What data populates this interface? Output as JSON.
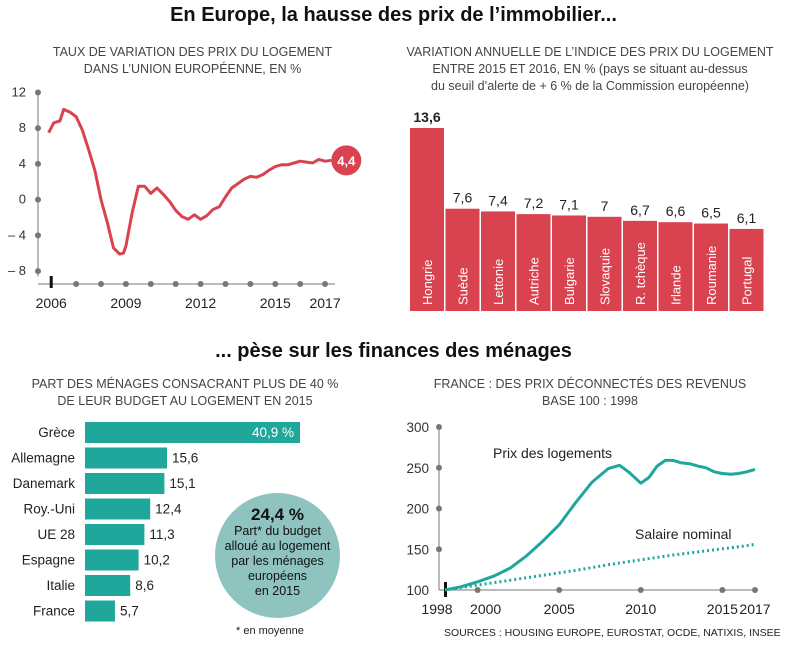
{
  "title_top": "En Europe, la hausse des prix de l’immobilier...",
  "title_bottom": "... pèse sur les finances des ménages",
  "sources": "SOURCES : HOUSING EUROPE, EUROSTAT, OCDE, NATIXIS, INSEE",
  "colors": {
    "red": "#d9434f",
    "teal": "#1ea79a",
    "circle": "#8fc3bf",
    "axis": "#777"
  },
  "chart_data": [
    {
      "id": "eu-house-prices",
      "type": "line",
      "title": "TAUX DE VARIATION DES PRIX DU LOGEMENT",
      "subtitle": "DANS L’UNION EUROPÉENNE, EN %",
      "x_ticks": [
        "2006",
        "2009",
        "2012",
        "2015",
        "2017"
      ],
      "y_ticks": [
        "12",
        "8",
        "4",
        "0",
        "– 4",
        "– 8"
      ],
      "y_tick_values": [
        12,
        8,
        4,
        0,
        -4,
        -8
      ],
      "ylim": [
        -9,
        12.5
      ],
      "xlim": [
        2005.75,
        2017.6
      ],
      "series": [
        {
          "x": [
            2005.9,
            2006.1,
            2006.35,
            2006.5,
            2006.75,
            2007.0,
            2007.25,
            2007.5,
            2007.75,
            2008.0,
            2008.25,
            2008.5,
            2008.75,
            2008.9,
            2009.0,
            2009.25,
            2009.5,
            2009.75,
            2010.0,
            2010.25,
            2010.5,
            2010.75,
            2011.0,
            2011.25,
            2011.5,
            2011.75,
            2012.0,
            2012.25,
            2012.5,
            2012.75,
            2013.0,
            2013.25,
            2013.5,
            2013.75,
            2014.0,
            2014.25,
            2014.5,
            2014.75,
            2015.0,
            2015.25,
            2015.5,
            2015.75,
            2016.0,
            2016.25,
            2016.5,
            2016.75,
            2017.0,
            2017.25
          ],
          "y": [
            7.5,
            8.6,
            8.8,
            10.1,
            9.8,
            9.3,
            7.8,
            5.6,
            3.3,
            0,
            -2.5,
            -5.4,
            -6.1,
            -6.0,
            -5.2,
            -1.5,
            1.5,
            1.5,
            0.7,
            1.3,
            0.6,
            -0.2,
            -1.2,
            -1.9,
            -2.2,
            -1.7,
            -2.2,
            -1.8,
            -1.1,
            -0.8,
            0.3,
            1.3,
            1.8,
            2.3,
            2.6,
            2.5,
            2.8,
            3.3,
            3.7,
            3.9,
            3.9,
            4.1,
            4.3,
            4.2,
            4.1,
            4.5,
            4.3,
            4.4
          ]
        }
      ],
      "last_label": "4,4"
    },
    {
      "id": "annual-index-variation",
      "type": "bar",
      "title": "VARIATION ANNUELLE DE L’INDICE DES PRIX DU LOGEMENT",
      "subtitle": "ENTRE 2015 ET 2016, EN % (pays se situant au-dessus",
      "subtitle2": "du seuil d’alerte de + 6 % de la Commission européenne)",
      "categories": [
        "Hongrie",
        "Suède",
        "Lettonie",
        "Autriche",
        "Bulgarie",
        "Slovaquie",
        "R. tchèque",
        "Irlande",
        "Roumanie",
        "Portugal"
      ],
      "values": [
        13.6,
        7.6,
        7.4,
        7.2,
        7.1,
        7,
        6.7,
        6.6,
        6.5,
        6.1
      ],
      "labels": [
        "13,6",
        "7,6",
        "7,4",
        "7,2",
        "7,1",
        "7",
        "6,7",
        "6,6",
        "6,5",
        "6,1"
      ],
      "ylim": [
        0,
        13.6
      ]
    },
    {
      "id": "households-burden",
      "type": "bar",
      "orientation": "horizontal",
      "title": "PART DES MÉNAGES CONSACRANT PLUS DE 40 %",
      "subtitle": "DE LEUR BUDGET AU LOGEMENT EN 2015",
      "categories": [
        "Grèce",
        "Allemagne",
        "Danemark",
        "Roy.-Uni",
        "UE 28",
        "Espagne",
        "Italie",
        "France"
      ],
      "values": [
        40.9,
        15.6,
        15.1,
        12.4,
        11.3,
        10.2,
        8.6,
        5.7
      ],
      "labels": [
        "40,9 %",
        "15,6",
        "15,1",
        "12,4",
        "11,3",
        "10,2",
        "8,6",
        "5,7"
      ],
      "xlim": [
        0,
        40.9
      ]
    },
    {
      "id": "france-prices-vs-income",
      "type": "line",
      "title": "FRANCE : DES PRIX DÉCONNECTÉS DES REVENUS",
      "subtitle": "BASE 100 : 1998",
      "x_ticks": [
        "1998",
        "2000",
        "2005",
        "2010",
        "2015",
        "2017"
      ],
      "x_tick_values": [
        1998,
        2000,
        2005,
        2010,
        2015,
        2017
      ],
      "y_ticks": [
        "300",
        "250",
        "200",
        "150",
        "100"
      ],
      "y_tick_values": [
        300,
        250,
        200,
        150,
        100
      ],
      "ylim": [
        100,
        300
      ],
      "xlim": [
        1998,
        2017
      ],
      "series": [
        {
          "name": "Prix des logements",
          "x": [
            1998,
            1999,
            2000,
            2001,
            2002,
            2003,
            2004,
            2005,
            2006,
            2007,
            2008,
            2008.7,
            2009.3,
            2010,
            2010.5,
            2011,
            2011.5,
            2012,
            2012.5,
            2013,
            2013.5,
            2014,
            2014.5,
            2015,
            2015.5,
            2016,
            2016.5,
            2017
          ],
          "y": [
            100,
            104,
            110,
            117,
            127,
            142,
            160,
            180,
            207,
            232,
            249,
            253,
            244,
            231,
            238,
            252,
            259,
            259,
            256,
            255,
            252,
            250,
            245,
            243,
            242,
            243,
            245,
            248
          ]
        },
        {
          "name": "Salaire nominal",
          "x": [
            1998,
            2000,
            2002,
            2004,
            2006,
            2008,
            2010,
            2012,
            2014,
            2016,
            2017
          ],
          "y": [
            100,
            106,
            112,
            118,
            124,
            131,
            137,
            143,
            148,
            153,
            156
          ]
        }
      ]
    }
  ],
  "callout": {
    "value": "24,4 %",
    "lines": [
      "Part* du budget",
      "alloué au logement",
      "par les ménages",
      "européens",
      "en 2015"
    ]
  },
  "footnote": "* en moyenne"
}
